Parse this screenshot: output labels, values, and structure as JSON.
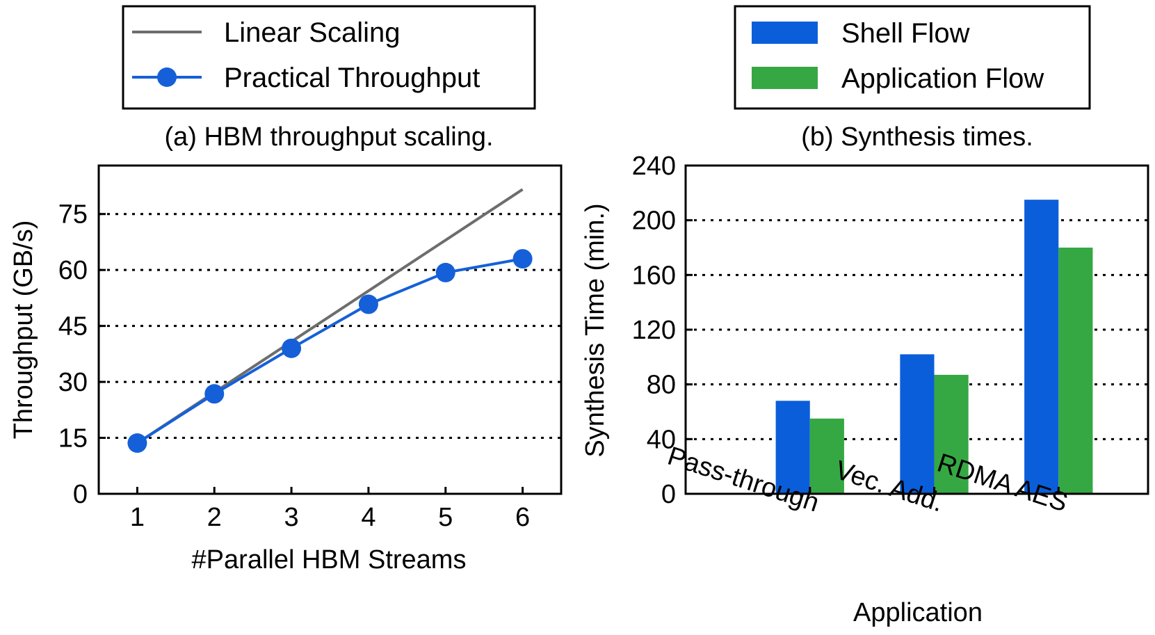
{
  "chart_data": [
    {
      "type": "line",
      "title": "(a) HBM throughput scaling.",
      "xlabel": "#Parallel HBM Streams",
      "ylabel": "Throughput (GB/s)",
      "xlim": [
        0.5,
        6.5
      ],
      "ylim": [
        0,
        88
      ],
      "xticks": [
        1,
        2,
        3,
        4,
        5,
        6
      ],
      "yticks": [
        0,
        15,
        30,
        45,
        60,
        75
      ],
      "grid": "horizontal-dotted",
      "legend_position": "top",
      "x": [
        1,
        2,
        3,
        4,
        5,
        6
      ],
      "series": [
        {
          "name": "Linear Scaling",
          "color": "#6d6d6d",
          "marker": "none",
          "values": [
            13.6,
            27.2,
            40.8,
            54.4,
            68.0,
            81.6
          ]
        },
        {
          "name": "Practical Throughput",
          "color": "#1560d8",
          "marker": "circle",
          "values": [
            13.6,
            26.8,
            39.0,
            50.8,
            59.3,
            63.0
          ]
        }
      ]
    },
    {
      "type": "bar",
      "title": "(b) Synthesis times.",
      "xlabel": "Application",
      "ylabel": "Synthesis Time (min.)",
      "ylim": [
        0,
        240
      ],
      "yticks": [
        0,
        40,
        80,
        120,
        160,
        200,
        240
      ],
      "grid": "horizontal-dotted",
      "legend_position": "top",
      "categories": [
        "Pass-through",
        "Vec. Add.",
        "RDMA AES"
      ],
      "series": [
        {
          "name": "Shell Flow",
          "color": "#0b5ed9",
          "values": [
            68,
            102,
            215
          ]
        },
        {
          "name": "Application Flow",
          "color": "#35a843",
          "values": [
            55,
            87,
            180
          ]
        }
      ]
    }
  ]
}
